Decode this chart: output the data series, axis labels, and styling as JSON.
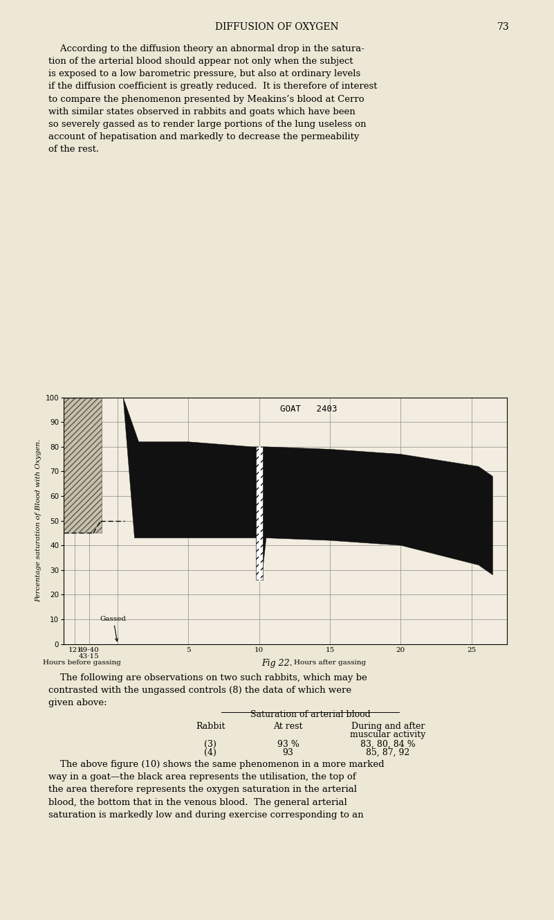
{
  "page_bg": "#ede8d5",
  "chart_bg": "#f2ede0",
  "header": "DIFFUSION OF OXYGEN",
  "page_num": "73",
  "fig_caption": "Fig 22.",
  "goat_label": "GOAT   2403",
  "ylabel": "Percentage saturation of Blood with Oxygen.",
  "gassed_label": "Gassed",
  "x_pre_labels": [
    "121",
    "49·40",
    "43·15"
  ],
  "x_post_labels": [
    "5",
    "10",
    "15",
    "20",
    "25"
  ],
  "x_pre_group": "Hours before gassing",
  "x_post_group": "Hours after gassing",
  "yticks": [
    0,
    10,
    20,
    30,
    40,
    50,
    60,
    70,
    80,
    90,
    100
  ],
  "body1": "    According to the diffusion theory an abnormal drop in the satura-\ntion of the arterial blood should appear not only when the subject\nis exposed to a low barometric pressure, but also at ordinary levels\nif the diffusion coefficient is greatly reduced.  It is therefore of interest\nto compare the phenomenon presented by Meakins’s blood at Cerro\nwith similar states observed in rabbits and goats which have been\nso severely gassed as to render large portions of the lung useless on\naccount of hepatisation and markedly to decrease the permeability\nof the rest.",
  "body2": "    The following are observations on two such rabbits, which may be\ncontrasted with the ungassed controls (8) the data of which were\ngiven above:",
  "table_header": "Saturation of arterial blood",
  "table_col1": "Rabbit",
  "table_col2": "At rest",
  "table_col3_line1": "During and after",
  "table_col3_line2": "muscular activity",
  "table_r1": [
    "(3)",
    "93 %",
    "83, 80, 84 %"
  ],
  "table_r2": [
    "(4)",
    "93",
    "85, 87, 92"
  ],
  "body3": "    The above figure (10) shows the same phenomenon in a more marked\nway in a goat—the black area represents the utilisation, the top of\nthe area therefore represents the oxygen saturation in the arterial\nblood, the bottom that in the venous blood.  The general arterial\nsaturation is markedly low and during exercise corresponding to an"
}
